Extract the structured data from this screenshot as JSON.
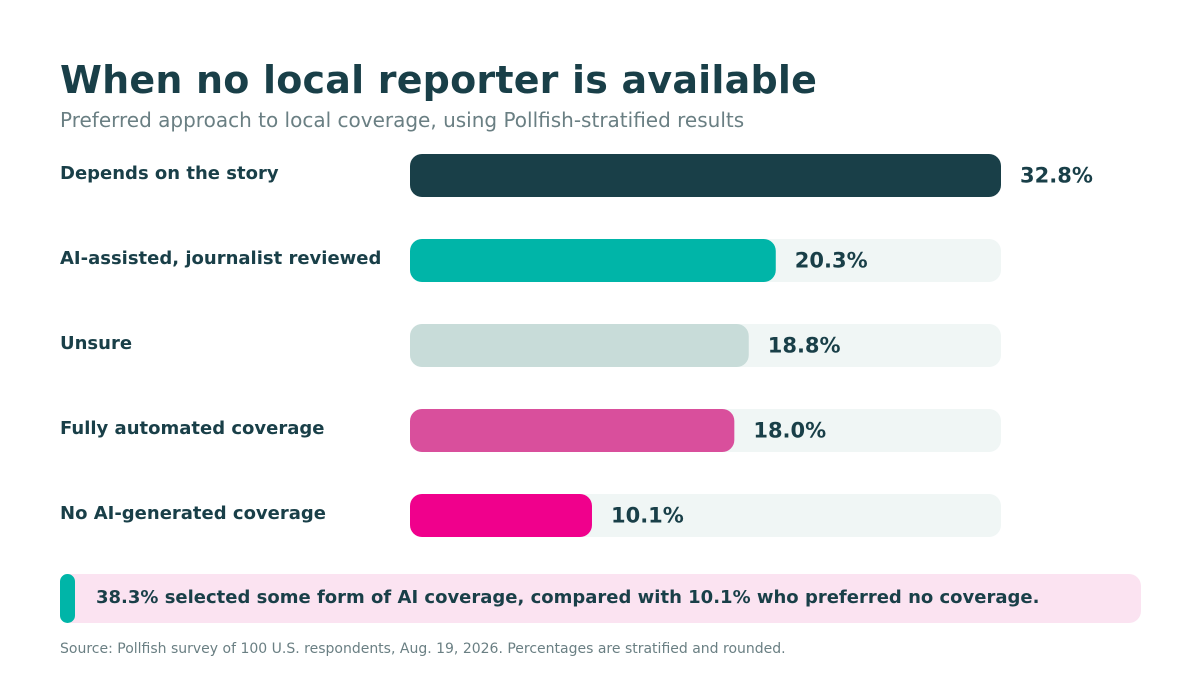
{
  "title": "When no local reporter is available",
  "subtitle": "Preferred approach to local coverage, using Pollfish-stratified results",
  "chart_data": {
    "type": "bar",
    "orientation": "horizontal",
    "categories": [
      "Depends on the story",
      "AI-assisted, journalist reviewed",
      "Unsure",
      "Fully automated coverage",
      "No AI-generated coverage"
    ],
    "values": [
      32.8,
      20.3,
      18.8,
      18.0,
      10.1
    ],
    "value_labels": [
      "32.8%",
      "20.3%",
      "18.8%",
      "18.0%",
      "10.1%"
    ],
    "xlim": [
      0,
      32.8
    ],
    "grid": false,
    "colors": [
      "#193f48",
      "#00b5a8",
      "#c8dcd9",
      "#d94f9c",
      "#f0008c"
    ],
    "track_color": "#f0f6f5"
  },
  "callout": {
    "text": "38.3% selected some form of AI coverage, compared with 10.1% who preferred no coverage.",
    "accent_color": "#00b5a8",
    "background_color": "#fbe3f1"
  },
  "source": "Source: Pollfish survey of 100 U.S. respondents, Aug. 19, 2026. Percentages are stratified and rounded."
}
